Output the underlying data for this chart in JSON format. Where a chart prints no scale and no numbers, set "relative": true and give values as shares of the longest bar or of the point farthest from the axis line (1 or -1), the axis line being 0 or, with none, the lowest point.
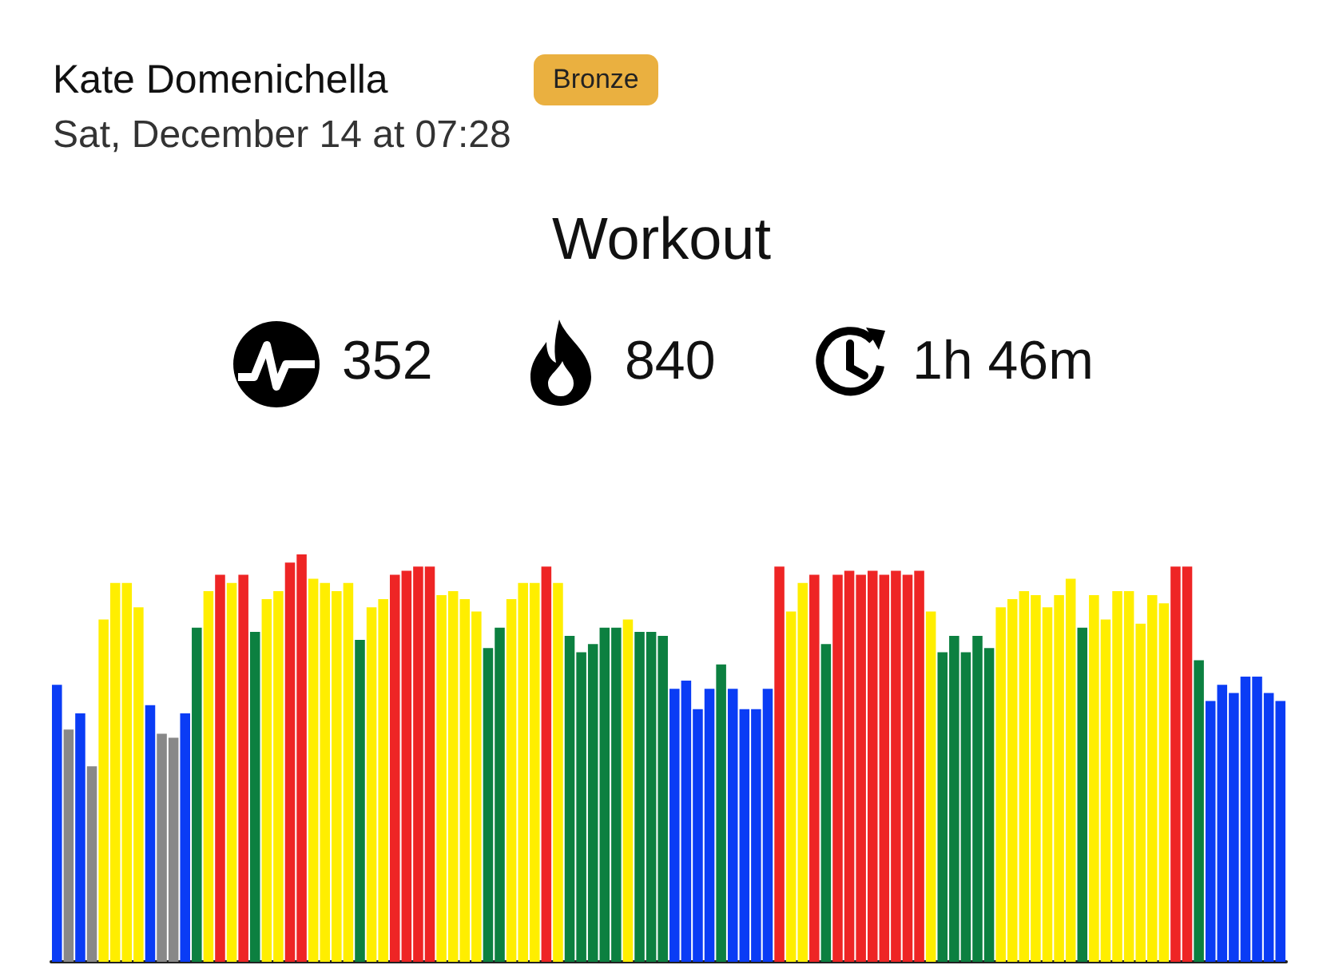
{
  "chart_data": {
    "type": "bar",
    "title": "Workout",
    "relative": true,
    "annotations": [
      "Kate Domenichella",
      "Bronze",
      "Sat, December 14 at 07:28",
      "352",
      "840",
      "1h 46m"
    ],
    "categories": [
      null,
      null,
      null,
      null,
      null,
      null,
      null,
      null,
      null,
      null,
      null,
      null,
      null,
      null,
      null,
      null,
      null,
      null,
      null,
      null,
      null,
      null,
      null,
      null,
      null,
      null,
      null,
      null,
      null,
      null,
      null,
      null,
      null,
      null,
      null,
      null,
      null,
      null,
      null,
      null,
      null,
      null,
      null,
      null,
      null,
      null,
      null,
      null,
      null,
      null,
      null,
      null,
      null,
      null,
      null,
      null,
      null,
      null,
      null,
      null,
      null,
      null,
      null,
      null,
      null,
      null,
      null,
      null,
      null,
      null,
      null,
      null,
      null,
      null,
      null,
      null,
      null,
      null,
      null,
      null,
      null,
      null,
      null,
      null,
      null,
      null,
      null,
      null,
      null,
      null,
      null,
      null,
      null,
      null,
      null,
      null,
      null,
      null,
      null,
      null,
      null,
      null,
      null,
      null,
      null,
      null
    ],
    "values": [
      0.68,
      0.57,
      0.61,
      0.48,
      0.84,
      0.93,
      0.93,
      0.87,
      0.63,
      0.56,
      0.55,
      0.61,
      0.82,
      0.91,
      0.95,
      0.93,
      0.95,
      0.81,
      0.89,
      0.91,
      0.98,
      1,
      0.94,
      0.93,
      0.91,
      0.93,
      0.79,
      0.87,
      0.89,
      0.95,
      0.96,
      0.97,
      0.97,
      0.9,
      0.91,
      0.89,
      0.86,
      0.77,
      0.82,
      0.89,
      0.93,
      0.93,
      0.97,
      0.93,
      0.8,
      0.76,
      0.78,
      0.82,
      0.82,
      0.84,
      0.81,
      0.81,
      0.8,
      0.67,
      0.69,
      0.62,
      0.67,
      0.73,
      0.67,
      0.62,
      0.62,
      0.67,
      0.97,
      0.86,
      0.93,
      0.95,
      0.78,
      0.95,
      0.96,
      0.95,
      0.96,
      0.95,
      0.96,
      0.95,
      0.96,
      0.86,
      0.76,
      0.8,
      0.76,
      0.8,
      0.77,
      0.87,
      0.89,
      0.91,
      0.9,
      0.87,
      0.9,
      0.94,
      0.82,
      0.9,
      0.84,
      0.91,
      0.91,
      0.83,
      0.9,
      0.88,
      0.97,
      0.97,
      0.74,
      0.64,
      0.68,
      0.66,
      0.7,
      0.7,
      0.66,
      0.64
    ],
    "colors": [
      "#0a3cf5",
      "#888888",
      "#0a3cf5",
      "#888888",
      "#ffee00",
      "#ffee00",
      "#ffee00",
      "#ffee00",
      "#0a3cf5",
      "#888888",
      "#888888",
      "#0a3cf5",
      "#0c8040",
      "#ffee00",
      "#ee2525",
      "#ffee00",
      "#ee2525",
      "#0c8040",
      "#ffee00",
      "#ffee00",
      "#ee2525",
      "#ee2525",
      "#ffee00",
      "#ffee00",
      "#ffee00",
      "#ffee00",
      "#0c8040",
      "#ffee00",
      "#ffee00",
      "#ee2525",
      "#ee2525",
      "#ee2525",
      "#ee2525",
      "#ffee00",
      "#ffee00",
      "#ffee00",
      "#ffee00",
      "#0c8040",
      "#0c8040",
      "#ffee00",
      "#ffee00",
      "#ffee00",
      "#ee2525",
      "#ffee00",
      "#0c8040",
      "#0c8040",
      "#0c8040",
      "#0c8040",
      "#0c8040",
      "#ffee00",
      "#0c8040",
      "#0c8040",
      "#0c8040",
      "#0a3cf5",
      "#0a3cf5",
      "#0a3cf5",
      "#0a3cf5",
      "#0c8040",
      "#0a3cf5",
      "#0a3cf5",
      "#0a3cf5",
      "#0a3cf5",
      "#ee2525",
      "#ffee00",
      "#ffee00",
      "#ee2525",
      "#0c8040",
      "#ee2525",
      "#ee2525",
      "#ee2525",
      "#ee2525",
      "#ee2525",
      "#ee2525",
      "#ee2525",
      "#ee2525",
      "#ffee00",
      "#0c8040",
      "#0c8040",
      "#0c8040",
      "#0c8040",
      "#0c8040",
      "#ffee00",
      "#ffee00",
      "#ffee00",
      "#ffee00",
      "#ffee00",
      "#ffee00",
      "#ffee00",
      "#0c8040",
      "#ffee00",
      "#ffee00",
      "#ffee00",
      "#ffee00",
      "#ffee00",
      "#ffee00",
      "#ffee00",
      "#ee2525",
      "#ee2525",
      "#0c8040",
      "#0a3cf5",
      "#0a3cf5",
      "#0a3cf5",
      "#0a3cf5",
      "#0a3cf5",
      "#0a3cf5",
      "#0a3cf5"
    ]
  }
}
